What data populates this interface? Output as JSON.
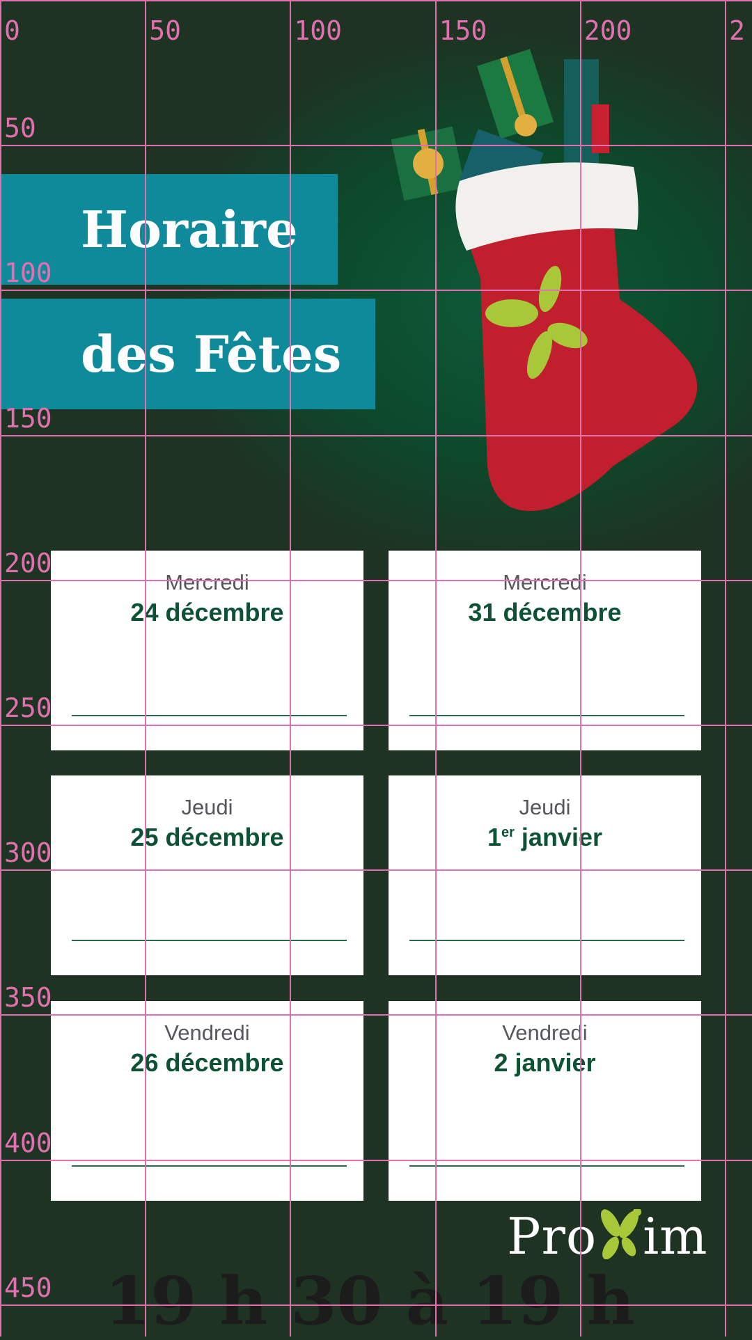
{
  "title": {
    "line1": "Horaire",
    "line2": "des Fêtes"
  },
  "cards": [
    {
      "day": "Mercredi",
      "date": "24 décembre"
    },
    {
      "day": "Mercredi",
      "date": "31 décembre"
    },
    {
      "day": "Jeudi",
      "date": "25 décembre"
    },
    {
      "day": "Jeudi",
      "date_num": "1",
      "date_sup": "er",
      "date_rest": " janvier"
    },
    {
      "day": "Vendredi",
      "date": "26 décembre"
    },
    {
      "day": "Vendredi",
      "date": "2 janvier"
    }
  ],
  "logo": {
    "text_before": "Pro",
    "text_after": "im",
    "colors": {
      "text": "#ffffff",
      "leaf": "#a8c83a"
    }
  },
  "bottom_text": "19 h 30 à 19 h",
  "grid": {
    "top_labels": [
      "0",
      "50",
      "100",
      "150",
      "200",
      "2"
    ],
    "left_labels": [
      "50",
      "100",
      "150",
      "200",
      "250",
      "300",
      "350",
      "400",
      "450"
    ],
    "color": "#e070b0"
  },
  "colors": {
    "background": "#1e3322",
    "title_box": "#0f8a9a",
    "date_text": "#0d5234"
  }
}
